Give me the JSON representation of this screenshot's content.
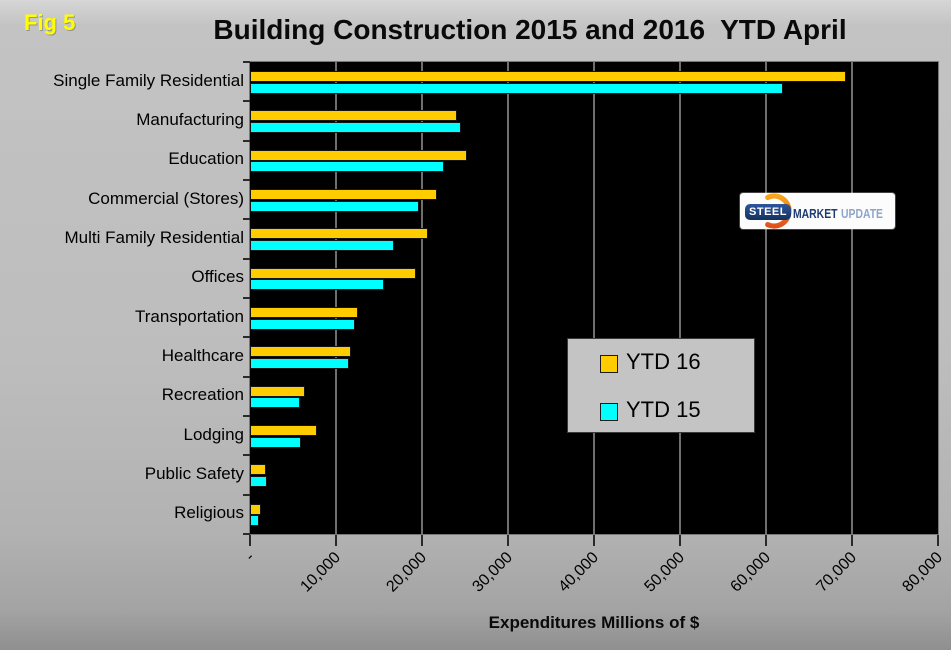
{
  "fig_label": "Fig 5",
  "x_axis": {
    "ticks": [
      "-",
      "10,000",
      "20,000",
      "30,000",
      "40,000",
      "50,000",
      "60,000",
      "70,000",
      "80,000"
    ],
    "tick_values": [
      0,
      10000,
      20000,
      30000,
      40000,
      50000,
      60000,
      70000,
      80000
    ]
  },
  "legend": {
    "items": [
      {
        "label": "YTD 16",
        "color": "#FFCC00"
      },
      {
        "label": "YTD 15",
        "color": "#00FFFF"
      }
    ]
  },
  "logo": {
    "steel": "STEEL",
    "market": "MARKET",
    "update": "UPDATE"
  },
  "chart_data": {
    "type": "bar",
    "orientation": "horizontal",
    "title": "Building Construction 2015 and 2016  YTD April",
    "xlabel": "Expenditures Millions of $",
    "xlim": [
      0,
      80000
    ],
    "grid_step": 10000,
    "grid_on": true,
    "plot_background": "#000000",
    "gridline_color": "#6f6f6f",
    "legend_position": "center-right",
    "categories": [
      "Single Family Residential",
      "Manufacturing",
      "Education",
      "Commercial (Stores)",
      "Multi Family Residential",
      "Offices",
      "Transportation",
      "Healthcare",
      "Recreation",
      "Lodging",
      "Public Safety",
      "Religious"
    ],
    "series": [
      {
        "name": "YTD 16",
        "color": "#FFCC00",
        "values": [
          69300,
          24100,
          25200,
          21700,
          20700,
          19300,
          12500,
          11800,
          6400,
          7800,
          1900,
          1250
        ]
      },
      {
        "name": "YTD 15",
        "color": "#00FFFF",
        "values": [
          62000,
          24500,
          22600,
          19600,
          16700,
          15600,
          12200,
          11500,
          5800,
          5900,
          2000,
          1100
        ]
      }
    ]
  }
}
